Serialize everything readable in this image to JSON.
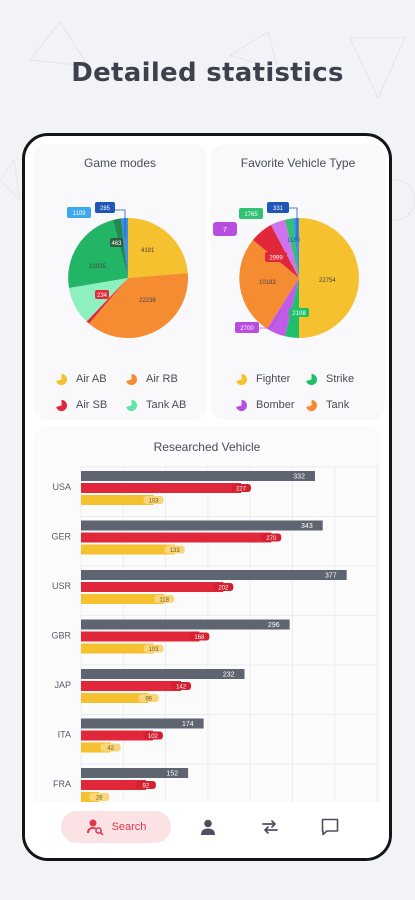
{
  "page": {
    "headline": "Detailed statistics"
  },
  "game_modes": {
    "title": "Game modes",
    "legend": [
      {
        "label": "Air AB",
        "color": "#f6c12e"
      },
      {
        "label": "Air RB",
        "color": "#f68c32"
      },
      {
        "label": "Air SB",
        "color": "#e0283a"
      },
      {
        "label": "Tank AB",
        "color": "#5fe6a6"
      }
    ],
    "labels": [
      "4181",
      "22238",
      "234",
      "10935",
      "463",
      "285",
      "1109"
    ]
  },
  "vehicle_type": {
    "title": "Favorite Vehicle Type",
    "legend": [
      {
        "label": "Fighter",
        "color": "#f6c12e"
      },
      {
        "label": "Strike",
        "color": "#1ec06a"
      },
      {
        "label": "Bomber",
        "color": "#b84ee0"
      },
      {
        "label": "Tank",
        "color": "#f68c32"
      }
    ],
    "labels": [
      "22754",
      "10183",
      "2999",
      "1765",
      "1180",
      "331",
      "2108",
      "2700",
      "7"
    ]
  },
  "researched": {
    "title": "Researched Vehicle",
    "rows": [
      {
        "country": "USA",
        "values": [
          "332",
          "227",
          "103"
        ]
      },
      {
        "country": "GER",
        "values": [
          "343",
          "270",
          "133"
        ]
      },
      {
        "country": "USR",
        "values": [
          "377",
          "202",
          "118"
        ]
      },
      {
        "country": "GBR",
        "values": [
          "296",
          "168",
          "103"
        ]
      },
      {
        "country": "JAP",
        "values": [
          "232",
          "142",
          "96"
        ]
      },
      {
        "country": "ITA",
        "values": [
          "174",
          "102",
          "42"
        ]
      },
      {
        "country": "FRA",
        "values": [
          "152",
          "92",
          "26"
        ]
      }
    ]
  },
  "nav": {
    "search_label": "Search"
  },
  "chart_data": [
    {
      "type": "pie",
      "title": "Game modes",
      "categories": [
        "Air AB",
        "Air RB",
        "Air SB",
        "Tank AB"
      ],
      "values": [
        4181,
        22238,
        234,
        10935
      ]
    },
    {
      "type": "pie",
      "title": "Favorite Vehicle Type",
      "categories": [
        "Fighter",
        "Strike",
        "Bomber",
        "Tank"
      ],
      "values": [
        22754,
        2108,
        2700,
        10183
      ]
    },
    {
      "type": "bar",
      "title": "Researched Vehicle",
      "categories": [
        "USA",
        "GER",
        "USR",
        "GBR",
        "JAP",
        "ITA",
        "FRA"
      ],
      "series": [
        {
          "values": [
            332,
            343,
            377,
            296,
            232,
            174,
            152
          ]
        },
        {
          "values": [
            227,
            270,
            202,
            168,
            142,
            102,
            92
          ]
        },
        {
          "values": [
            103,
            133,
            118,
            103,
            96,
            42,
            26
          ]
        }
      ],
      "xlim": [
        0,
        420
      ],
      "grid": true
    }
  ]
}
